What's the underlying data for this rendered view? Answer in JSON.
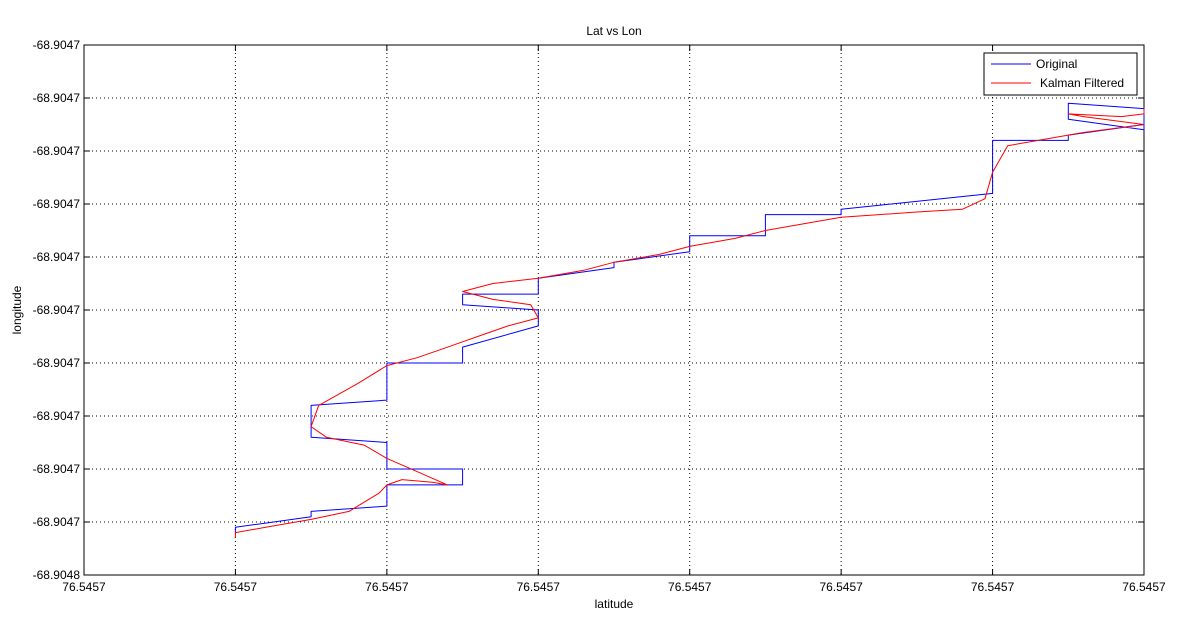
{
  "chart_data": {
    "type": "line",
    "title": "Lat vs Lon",
    "xlabel": "latitude",
    "ylabel": "longitude",
    "xlim": [
      0,
      7
    ],
    "ylim": [
      0,
      10
    ],
    "grid": true,
    "legend_position": "top-right",
    "x_tick_values": [
      0,
      1,
      2,
      3,
      4,
      5,
      6,
      7
    ],
    "x_tick_labels": [
      "76.5457",
      "76.5457",
      "76.5457",
      "76.5457",
      "76.5457",
      "76.5457",
      "76.5457",
      "76.5457"
    ],
    "y_tick_values": [
      10,
      9,
      8,
      7,
      6,
      5,
      4,
      3,
      2,
      1,
      0
    ],
    "y_tick_labels": [
      "-68.9047",
      "-68.9047",
      "-68.9047",
      "-68.9047",
      "-68.9047",
      "-68.9047",
      "-68.9047",
      "-68.9047",
      "-68.9047",
      "-68.9047",
      "-68.9048"
    ],
    "series": [
      {
        "name": "Original",
        "color": "#0000ff",
        "x": [
          1,
          1,
          1.5,
          1.5,
          2,
          2,
          2.5,
          2.5,
          2,
          2,
          1.5,
          1.5,
          2,
          2,
          2.5,
          2.5,
          3,
          3,
          2.5,
          2.5,
          3,
          3,
          3.5,
          3.5,
          4,
          4,
          4.5,
          4.5,
          5,
          5,
          6,
          6,
          6.5,
          6.5,
          7,
          7,
          6.5,
          6.5,
          7,
          7
        ],
        "y": [
          0.8,
          0.9,
          1.1,
          1.2,
          1.3,
          1.7,
          1.7,
          2,
          2,
          2.5,
          2.6,
          3.2,
          3.3,
          4,
          4,
          4.3,
          4.7,
          5,
          5.1,
          5.3,
          5.3,
          5.6,
          5.8,
          5.9,
          6.1,
          6.4,
          6.4,
          6.8,
          6.8,
          6.9,
          7.2,
          8.2,
          8.2,
          8.3,
          8.5,
          8.4,
          8.6,
          8.9,
          8.8,
          8.5
        ]
      },
      {
        "name": "Kalman Filtered",
        "color": "#ff0000",
        "x": [
          1,
          1,
          1.2,
          1.5,
          1.75,
          1.95,
          2,
          2.1,
          2.3,
          2.4,
          2.2,
          2,
          1.85,
          1.6,
          1.5,
          1.55,
          1.8,
          2,
          2.2,
          2.35,
          2.5,
          2.6,
          2.8,
          3,
          2.95,
          2.7,
          2.5,
          2.7,
          3,
          3.3,
          3.5,
          3.8,
          4,
          4.3,
          4.5,
          4.8,
          5,
          5.5,
          5.8,
          5.95,
          6,
          6.1,
          6.4,
          6.6,
          7,
          6.6,
          6.5,
          6.85,
          7,
          7
        ],
        "y": [
          0.7,
          0.8,
          0.9,
          1.05,
          1.2,
          1.55,
          1.7,
          1.8,
          1.75,
          1.7,
          1.95,
          2.2,
          2.45,
          2.6,
          2.8,
          3.2,
          3.6,
          3.95,
          4.1,
          4.25,
          4.4,
          4.5,
          4.7,
          4.85,
          5.1,
          5.2,
          5.35,
          5.5,
          5.6,
          5.75,
          5.9,
          6.05,
          6.2,
          6.35,
          6.5,
          6.65,
          6.75,
          6.85,
          6.9,
          7.1,
          7.6,
          8.1,
          8.25,
          8.35,
          8.5,
          8.65,
          8.7,
          8.65,
          8.7,
          8.8
        ]
      }
    ]
  }
}
